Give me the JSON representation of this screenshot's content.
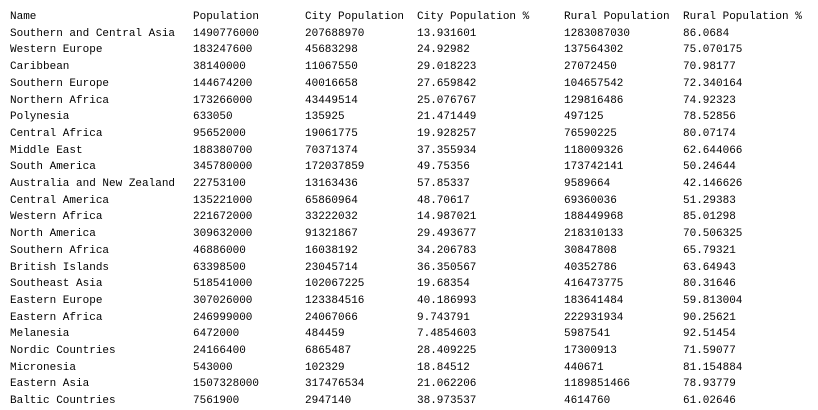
{
  "table": {
    "columns": [
      "Name",
      "Population",
      "City Population",
      "City Population %",
      "Rural Population",
      "Rural Population %"
    ],
    "rows": [
      [
        "Southern and Central Asia",
        "1490776000",
        "207688970",
        "13.931601",
        "1283087030",
        "86.0684"
      ],
      [
        "Western Europe",
        "183247600",
        "45683298",
        "24.92982",
        "137564302",
        "75.070175"
      ],
      [
        "Caribbean",
        "38140000",
        "11067550",
        "29.018223",
        "27072450",
        "70.98177"
      ],
      [
        "Southern Europe",
        "144674200",
        "40016658",
        "27.659842",
        "104657542",
        "72.340164"
      ],
      [
        "Northern Africa",
        "173266000",
        "43449514",
        "25.076767",
        "129816486",
        "74.92323"
      ],
      [
        "Polynesia",
        "633050",
        "135925",
        "21.471449",
        "497125",
        "78.52856"
      ],
      [
        "Central Africa",
        "95652000",
        "19061775",
        "19.928257",
        "76590225",
        "80.07174"
      ],
      [
        "Middle East",
        "188380700",
        "70371374",
        "37.355934",
        "118009326",
        "62.644066"
      ],
      [
        "South America",
        "345780000",
        "172037859",
        "49.75356",
        "173742141",
        "50.24644"
      ],
      [
        "Australia and New Zealand",
        "22753100",
        "13163436",
        "57.85337",
        "9589664",
        "42.146626"
      ],
      [
        "Central America",
        "135221000",
        "65860964",
        "48.70617",
        "69360036",
        "51.29383"
      ],
      [
        "Western Africa",
        "221672000",
        "33222032",
        "14.987021",
        "188449968",
        "85.01298"
      ],
      [
        "North America",
        "309632000",
        "91321867",
        "29.493677",
        "218310133",
        "70.506325"
      ],
      [
        "Southern Africa",
        "46886000",
        "16038192",
        "34.206783",
        "30847808",
        "65.79321"
      ],
      [
        "British Islands",
        "63398500",
        "23045714",
        "36.350567",
        "40352786",
        "63.64943"
      ],
      [
        "Southeast Asia",
        "518541000",
        "102067225",
        "19.68354",
        "416473775",
        "80.31646"
      ],
      [
        "Eastern Europe",
        "307026000",
        "123384516",
        "40.186993",
        "183641484",
        "59.813004"
      ],
      [
        "Eastern Africa",
        "246999000",
        "24067066",
        "9.743791",
        "222931934",
        "90.25621"
      ],
      [
        "Melanesia",
        "6472000",
        "484459",
        "7.4854603",
        "5987541",
        "92.51454"
      ],
      [
        "Nordic Countries",
        "24166400",
        "6865487",
        "28.409225",
        "17300913",
        "71.59077"
      ],
      [
        "Micronesia",
        "543000",
        "102329",
        "18.84512",
        "440671",
        "81.154884"
      ],
      [
        "Eastern Asia",
        "1507328000",
        "317476534",
        "21.062206",
        "1189851466",
        "78.93779"
      ],
      [
        "Baltic Countries",
        "7561900",
        "2947140",
        "38.973537",
        "4614760",
        "61.02646"
      ]
    ]
  }
}
